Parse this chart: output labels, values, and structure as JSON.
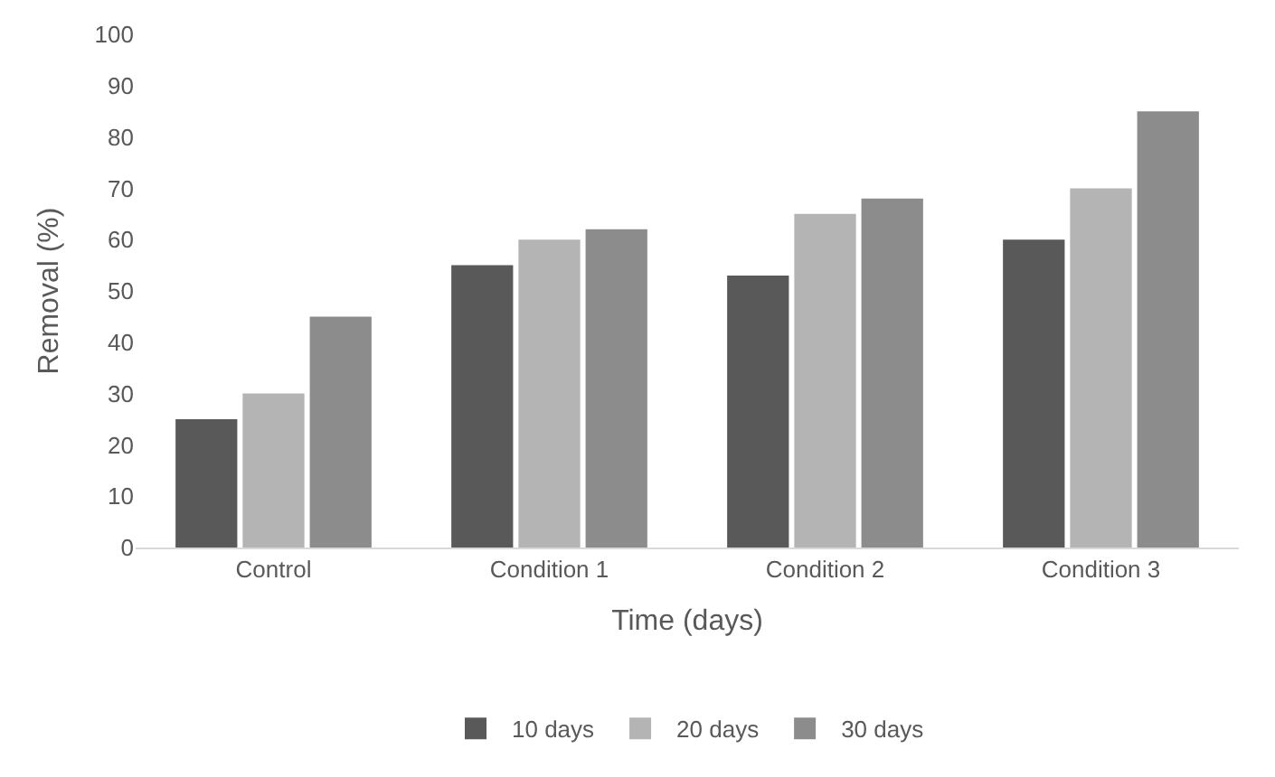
{
  "chart_data": {
    "type": "bar",
    "xlabel": "Time (days)",
    "ylabel": "Removal (%)",
    "categories": [
      "Control",
      "Condition 1",
      "Condition 2",
      "Condition 3"
    ],
    "series": [
      {
        "name": "10 days",
        "color": "#595959",
        "values": [
          25,
          55,
          53,
          60
        ]
      },
      {
        "name": "20 days",
        "color": "#b4b4b4",
        "values": [
          30,
          60,
          65,
          70
        ]
      },
      {
        "name": "30 days",
        "color": "#8c8c8c",
        "values": [
          45,
          62,
          68,
          85
        ]
      }
    ],
    "ylim": [
      0,
      100
    ],
    "yticks": [
      0,
      10,
      20,
      30,
      40,
      50,
      60,
      70,
      80,
      90,
      100
    ],
    "grid": false,
    "legend": "bottom"
  }
}
